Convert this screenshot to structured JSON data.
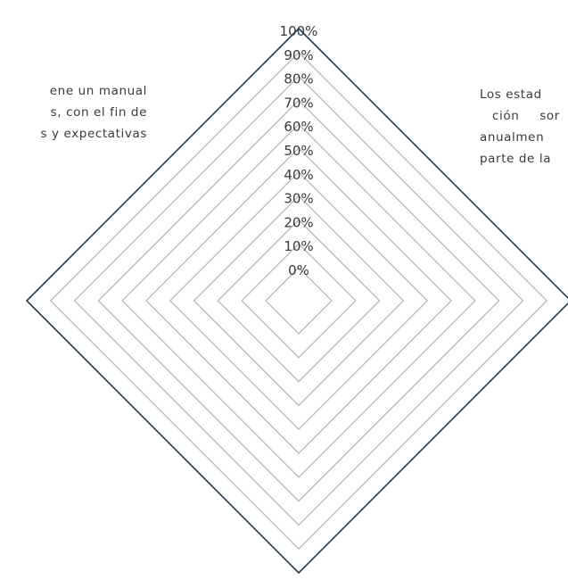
{
  "chart_data": {
    "type": "radar",
    "title": "",
    "axis_labels": [
      "",
      "Los estados financieros de la institución son auditados anualmente por parte de la",
      "",
      "tiene un manual de políticas, con el fin de las necesidades y expectativas"
    ],
    "axis_label_visible_lines": {
      "right": [
        "Los estad",
        "ción  sor",
        "anualmen",
        "parte de la"
      ],
      "left": [
        "ene un manual",
        "s, con el fin de",
        "s y expectativas"
      ]
    },
    "radial_ticks": [
      "0%",
      "10%",
      "20%",
      "30%",
      "40%",
      "50%",
      "60%",
      "70%",
      "80%",
      "90%",
      "100%"
    ],
    "r_range": [
      0,
      100
    ],
    "series": [],
    "grid": true,
    "grid_color": "#b3b3b3",
    "outer_color": "#1f3864"
  }
}
